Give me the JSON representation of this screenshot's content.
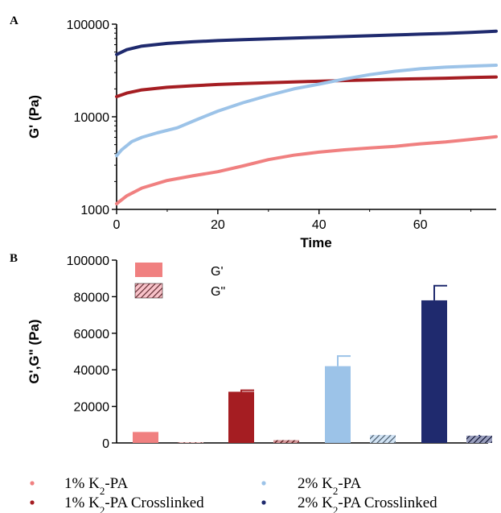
{
  "panels": {
    "a_label": "A",
    "b_label": "B"
  },
  "colors": {
    "s1": "#f08080",
    "s1c": "#a51d22",
    "s2": "#9cc3e8",
    "s2c": "#1f2a6e"
  },
  "chart_data": [
    {
      "type": "line",
      "panel": "A",
      "xlabel": "Time",
      "ylabel": "G' (Pa)",
      "xlim": [
        0,
        75
      ],
      "ylim": [
        1000,
        100000
      ],
      "yscale": "log",
      "xticks": [
        "0",
        "20",
        "40",
        "60"
      ],
      "yticks": [
        "1000",
        "10000",
        "100000"
      ],
      "series": [
        {
          "key": "s1",
          "x": [
            0,
            2,
            5,
            10,
            15,
            20,
            25,
            30,
            35,
            40,
            45,
            50,
            55,
            60,
            65,
            70,
            75
          ],
          "y": [
            1150,
            1400,
            1700,
            2050,
            2300,
            2550,
            2950,
            3450,
            3850,
            4150,
            4400,
            4600,
            4800,
            5100,
            5350,
            5700,
            6100
          ]
        },
        {
          "key": "s1c",
          "x": [
            0,
            2,
            5,
            10,
            15,
            20,
            25,
            30,
            35,
            40,
            45,
            50,
            55,
            60,
            65,
            70,
            75
          ],
          "y": [
            16500,
            18000,
            19500,
            20800,
            21600,
            22300,
            22800,
            23300,
            23800,
            24200,
            24600,
            25000,
            25400,
            25800,
            26100,
            26500,
            26900
          ]
        },
        {
          "key": "s2",
          "x": [
            0,
            1,
            3,
            5,
            8,
            12,
            16,
            20,
            25,
            30,
            35,
            40,
            45,
            50,
            55,
            60,
            65,
            70,
            75
          ],
          "y": [
            3800,
            4400,
            5400,
            6000,
            6700,
            7600,
            9400,
            11500,
            14200,
            17000,
            20000,
            22500,
            25500,
            28500,
            31000,
            33000,
            34300,
            35200,
            36000
          ]
        },
        {
          "key": "s2c",
          "x": [
            0,
            2,
            5,
            10,
            15,
            20,
            25,
            30,
            35,
            40,
            45,
            50,
            55,
            60,
            65,
            70,
            75
          ],
          "y": [
            47000,
            53000,
            58000,
            62000,
            64500,
            66500,
            68000,
            69500,
            70800,
            72000,
            73500,
            75000,
            76500,
            78000,
            79500,
            81500,
            84000
          ]
        }
      ]
    },
    {
      "type": "bar",
      "panel": "B",
      "ylabel": "G',G\" (Pa)",
      "ylim": [
        0,
        100000
      ],
      "yticks": [
        "0",
        "20000",
        "40000",
        "60000",
        "80000",
        "100000"
      ],
      "legend": [
        {
          "label": "G'",
          "pattern": "solid"
        },
        {
          "label": "G\"",
          "pattern": "hatched"
        }
      ],
      "groups": [
        {
          "key": "s1",
          "g1": 6000,
          "g1_err": 0,
          "g2": 400,
          "g2_err": 0
        },
        {
          "key": "s1c",
          "g1": 28000,
          "g1_err": 800,
          "g2": 1500,
          "g2_err": 0
        },
        {
          "key": "s2",
          "g1": 42000,
          "g1_err": 5500,
          "g2": 4300,
          "g2_err": 0
        },
        {
          "key": "s2c",
          "g1": 78000,
          "g1_err": 8000,
          "g2": 3900,
          "g2_err": 500
        }
      ]
    }
  ],
  "sample_legend": [
    {
      "key": "s1",
      "prefix": "1% K",
      "sub": "2",
      "suffix": "-PA"
    },
    {
      "key": "s2",
      "prefix": "2% K",
      "sub": "2",
      "suffix": "-PA"
    },
    {
      "key": "s1c",
      "prefix": "1% K",
      "sub": "2",
      "suffix": "-PA Crosslinked"
    },
    {
      "key": "s2c",
      "prefix": "2% K",
      "sub": "2",
      "suffix": "-PA Crosslinked"
    }
  ]
}
